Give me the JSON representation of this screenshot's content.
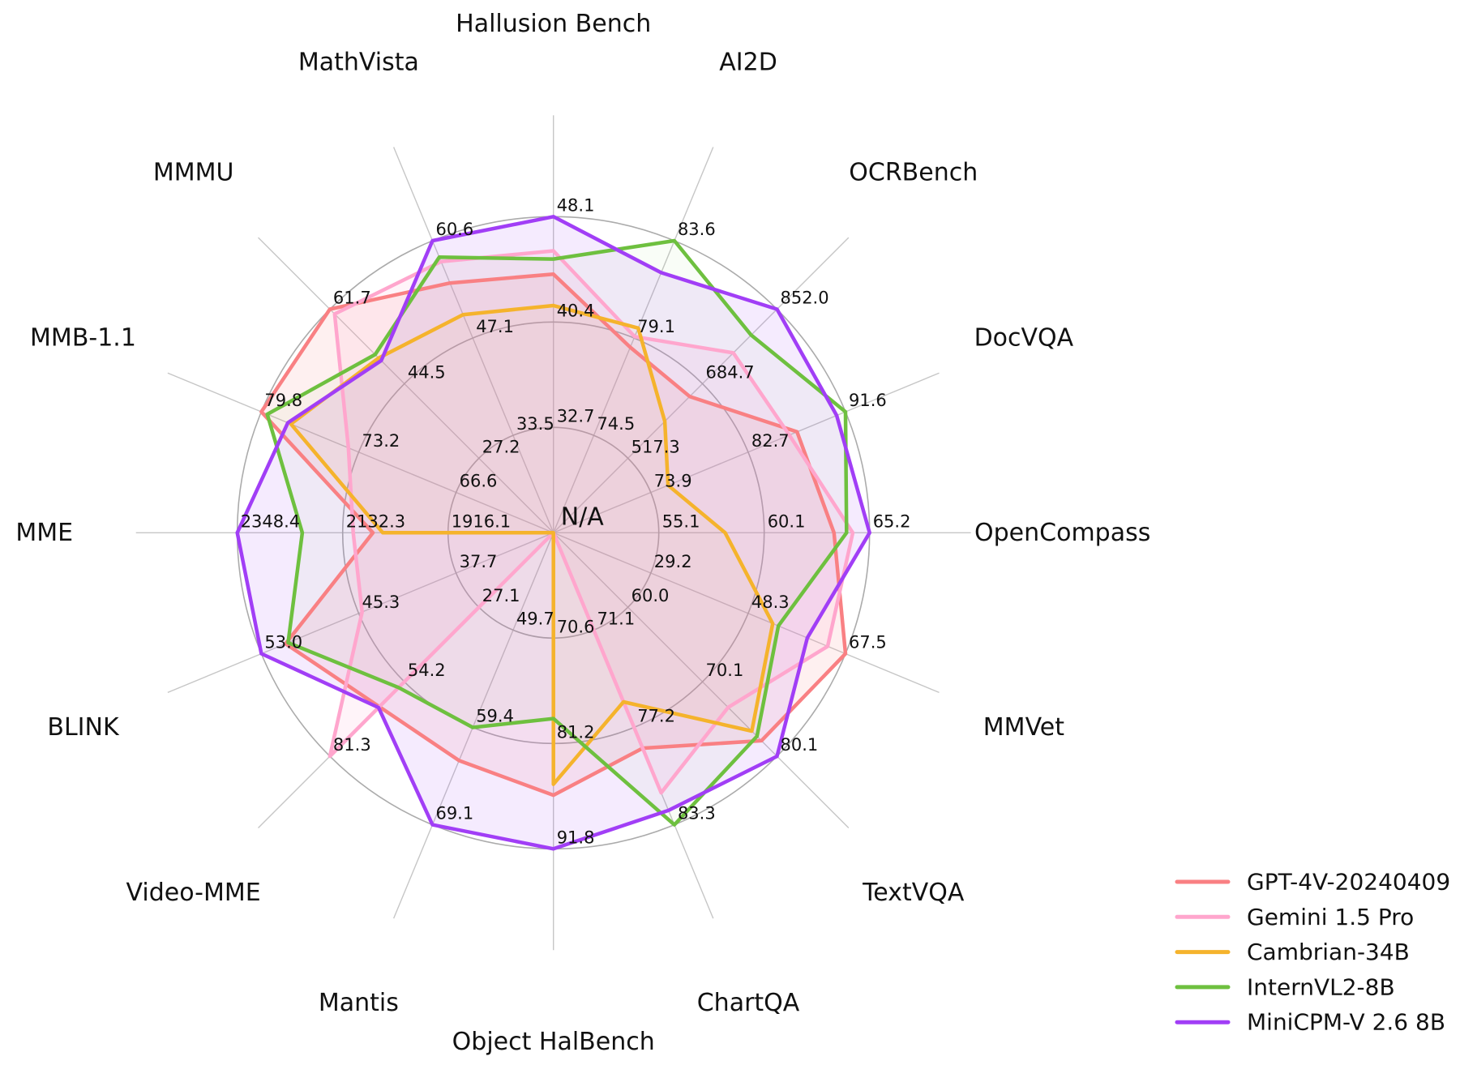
{
  "chart_data": {
    "type": "radar",
    "title": "",
    "grid": true,
    "ring_levels": 3,
    "legend_position": "bottom-right",
    "na_label": "N/A",
    "normalization": "per-axis linear; ring ticks [inner,middle,outer]; center value = 2*inner - middle; outer ring = max",
    "axes": [
      {
        "label": "OpenCompass",
        "ticks": [
          55.1,
          60.1,
          65.2
        ]
      },
      {
        "label": "DocVQA",
        "ticks": [
          73.9,
          82.7,
          91.6
        ]
      },
      {
        "label": "OCRBench",
        "ticks": [
          517.3,
          684.7,
          852.0
        ]
      },
      {
        "label": "AI2D",
        "ticks": [
          74.5,
          79.1,
          83.6
        ]
      },
      {
        "label": "Hallusion Bench",
        "ticks": [
          32.7,
          40.4,
          48.1
        ]
      },
      {
        "label": "MathVista",
        "ticks": [
          33.5,
          47.1,
          60.6
        ]
      },
      {
        "label": "MMMU",
        "ticks": [
          27.2,
          44.5,
          61.7
        ]
      },
      {
        "label": "MMB-1.1",
        "ticks": [
          66.6,
          73.2,
          79.8
        ]
      },
      {
        "label": "MME",
        "ticks": [
          1916.1,
          2132.3,
          2348.4
        ]
      },
      {
        "label": "BLINK",
        "ticks": [
          37.7,
          45.3,
          53.0
        ]
      },
      {
        "label": "Video-MME",
        "ticks": [
          27.1,
          54.2,
          81.3
        ]
      },
      {
        "label": "Mantis",
        "ticks": [
          49.7,
          59.4,
          69.1
        ]
      },
      {
        "label": "Object HalBench",
        "ticks": [
          70.6,
          81.2,
          91.8
        ]
      },
      {
        "label": "ChartQA",
        "ticks": [
          71.1,
          77.2,
          83.3
        ]
      },
      {
        "label": "TextVQA",
        "ticks": [
          60.0,
          70.1,
          80.1
        ]
      },
      {
        "label": "MMVet",
        "ticks": [
          29.2,
          48.3,
          67.5
        ]
      }
    ],
    "series": [
      {
        "name": "GPT-4V-20240409",
        "color": "#F98083",
        "fill_opacity": 0.12,
        "values": [
          63.5,
          87.2,
          656.0,
          78.6,
          43.9,
          54.7,
          61.7,
          79.8,
          2070.2,
          51.1,
          63.3,
          62.7,
          86.4,
          78.5,
          78.0,
          67.5
        ]
      },
      {
        "name": "Gemini 1.5 Pro",
        "color": "#FFA6CD",
        "fill_opacity": 0.12,
        "values": [
          64.4,
          86.5,
          754.0,
          79.1,
          45.6,
          57.7,
          60.6,
          73.9,
          2110.6,
          45.1,
          81.3,
          null,
          null,
          81.3,
          73.5,
          64.0
        ]
      },
      {
        "name": "Cambrian-34B",
        "color": "#F5B32C",
        "fill_opacity": 0.05,
        "values": [
          58.3,
          75.5,
          600.0,
          79.5,
          41.6,
          50.3,
          50.4,
          77.8,
          2049.9,
          null,
          null,
          null,
          85.3,
          75.6,
          76.7,
          53.2
        ]
      },
      {
        "name": "InternVL2-8B",
        "color": "#6EC03F",
        "fill_opacity": 0.04,
        "values": [
          64.1,
          91.6,
          794.0,
          83.6,
          45.0,
          58.3,
          51.2,
          79.4,
          2215.1,
          50.9,
          56.3,
          59.4,
          78.7,
          83.3,
          77.4,
          54.3
        ]
      },
      {
        "name": "MiniCPM-V 2.6 8B",
        "color": "#A13EF6",
        "fill_opacity": 0.1,
        "values": [
          65.2,
          90.8,
          852.0,
          82.1,
          48.1,
          60.6,
          49.8,
          78.0,
          2348.4,
          53.0,
          63.6,
          69.1,
          91.8,
          82.4,
          80.1,
          60.0
        ]
      }
    ],
    "grid_color": "#ABABAB",
    "axis_line_color": "#C6C6C6",
    "text_color": "#111111"
  }
}
